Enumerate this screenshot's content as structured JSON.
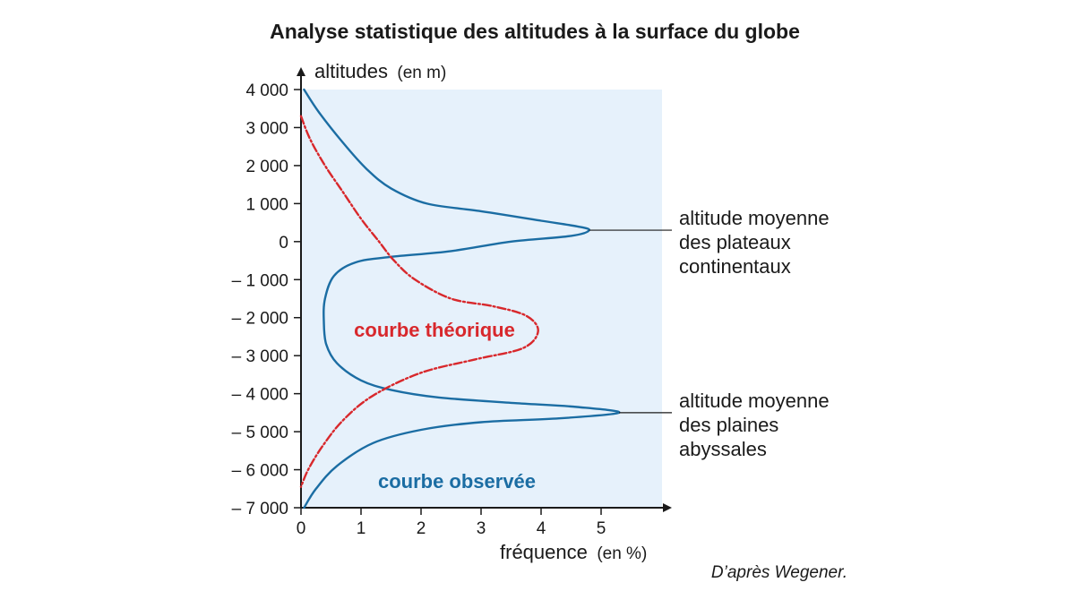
{
  "chart_data": {
    "type": "line",
    "title": "Analyse statistique des altitudes à la surface du globe",
    "ylabel": "altitudes",
    "ylabel_unit": "(en m)",
    "xlabel": "fréquence",
    "xlabel_unit": "(en %)",
    "xlim": [
      0,
      6
    ],
    "ylim": [
      -7000,
      4000
    ],
    "x_ticks": [
      "0",
      "1",
      "2",
      "3",
      "4",
      "5"
    ],
    "y_ticks": [
      {
        "value": 4000,
        "label": "4 000"
      },
      {
        "value": 3000,
        "label": "3 000"
      },
      {
        "value": 2000,
        "label": "2 000"
      },
      {
        "value": 1000,
        "label": "1 000"
      },
      {
        "value": 0,
        "label": "0"
      },
      {
        "value": -1000,
        "label": "– 1 000"
      },
      {
        "value": -2000,
        "label": "– 2 000"
      },
      {
        "value": -3000,
        "label": "– 3 000"
      },
      {
        "value": -4000,
        "label": "– 4 000"
      },
      {
        "value": -5000,
        "label": "– 5 000"
      },
      {
        "value": -6000,
        "label": "– 6 000"
      },
      {
        "value": -7000,
        "label": "– 7 000"
      }
    ],
    "series": [
      {
        "name": "courbe observée",
        "color": "#1b6da3",
        "style": "solid",
        "points": [
          [
            0.05,
            4000
          ],
          [
            0.3,
            3400
          ],
          [
            0.7,
            2600
          ],
          [
            1.1,
            1900
          ],
          [
            1.5,
            1400
          ],
          [
            2.1,
            1000
          ],
          [
            3.0,
            800
          ],
          [
            4.0,
            550
          ],
          [
            4.6,
            400
          ],
          [
            4.8,
            300
          ],
          [
            4.5,
            150
          ],
          [
            3.5,
            0
          ],
          [
            2.5,
            -250
          ],
          [
            1.5,
            -400
          ],
          [
            0.9,
            -550
          ],
          [
            0.55,
            -900
          ],
          [
            0.4,
            -1500
          ],
          [
            0.38,
            -2100
          ],
          [
            0.42,
            -2700
          ],
          [
            0.6,
            -3200
          ],
          [
            1.0,
            -3650
          ],
          [
            1.5,
            -3900
          ],
          [
            2.3,
            -4100
          ],
          [
            3.6,
            -4250
          ],
          [
            4.6,
            -4350
          ],
          [
            5.3,
            -4500
          ],
          [
            4.3,
            -4650
          ],
          [
            3.0,
            -4750
          ],
          [
            2.0,
            -4950
          ],
          [
            1.2,
            -5300
          ],
          [
            0.6,
            -5900
          ],
          [
            0.25,
            -6500
          ],
          [
            0.05,
            -7000
          ]
        ]
      },
      {
        "name": "courbe théorique",
        "color": "#d8282c",
        "style": "dashed",
        "points": [
          [
            0.0,
            3300
          ],
          [
            0.15,
            2700
          ],
          [
            0.4,
            2000
          ],
          [
            0.7,
            1300
          ],
          [
            1.0,
            600
          ],
          [
            1.3,
            0
          ],
          [
            1.55,
            -500
          ],
          [
            1.9,
            -1000
          ],
          [
            2.5,
            -1500
          ],
          [
            3.2,
            -1700
          ],
          [
            3.75,
            -1950
          ],
          [
            3.95,
            -2350
          ],
          [
            3.7,
            -2800
          ],
          [
            2.9,
            -3100
          ],
          [
            2.0,
            -3450
          ],
          [
            1.2,
            -4050
          ],
          [
            0.7,
            -4700
          ],
          [
            0.35,
            -5400
          ],
          [
            0.12,
            -6000
          ],
          [
            0.0,
            -6450
          ]
        ]
      }
    ],
    "series_labels": {
      "theorique": "courbe théorique",
      "observee": "courbe observée"
    },
    "annotations": [
      {
        "lines": [
          "altitude moyenne",
          "des plateaux",
          "continentaux"
        ],
        "point": [
          4.8,
          300
        ]
      },
      {
        "lines": [
          "altitude moyenne",
          "des plaines",
          "abyssales"
        ],
        "point": [
          5.3,
          -4500
        ]
      }
    ],
    "grid": false,
    "legend": "none",
    "background_color": "#e6f1fb",
    "source": "D’après Wegener."
  }
}
